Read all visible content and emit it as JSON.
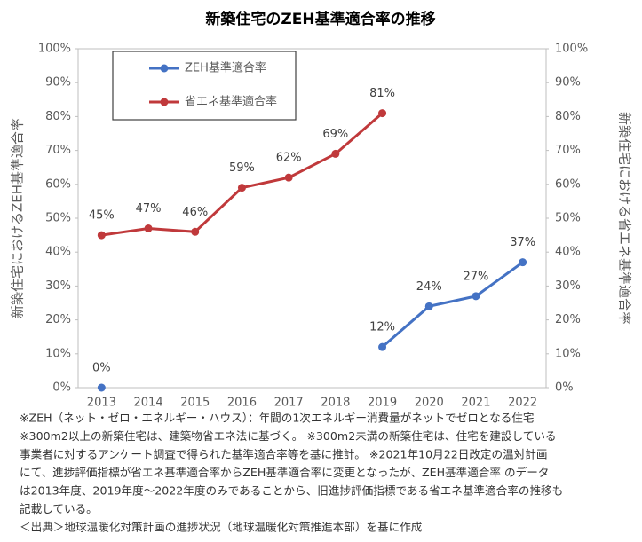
{
  "chart_data": {
    "type": "line",
    "title": "新築住宅のZEH基準適合率の推移",
    "y_label": "新築住宅におけるZEH基準適合率",
    "y2_label": "新築住宅における省エネ基準適合率",
    "categories": [
      "2013",
      "2014",
      "2015",
      "2016",
      "2017",
      "2018",
      "2019",
      "2020",
      "2021",
      "2022"
    ],
    "series": [
      {
        "name": "ZEH基準適合率",
        "color": "#4472c4",
        "axis": "y",
        "values": [
          0,
          null,
          null,
          null,
          null,
          null,
          12,
          24,
          27,
          37
        ],
        "value_labels": [
          "0%",
          null,
          null,
          null,
          null,
          null,
          "12%",
          "24%",
          "27%",
          "37%"
        ]
      },
      {
        "name": "省エネ基準適合率",
        "color": "#c0393b",
        "axis": "y2",
        "values": [
          45,
          47,
          46,
          59,
          62,
          69,
          81,
          null,
          null,
          null
        ],
        "value_labels": [
          "45%",
          "47%",
          "46%",
          "59%",
          "62%",
          "69%",
          "81%",
          null,
          null,
          null
        ]
      }
    ],
    "ylim": [
      0,
      100
    ],
    "yticks": [
      {
        "value": 0,
        "label": "0%"
      },
      {
        "value": 10,
        "label": "10%"
      },
      {
        "value": 20,
        "label": "20%"
      },
      {
        "value": 30,
        "label": "30%"
      },
      {
        "value": 40,
        "label": "40%"
      },
      {
        "value": 50,
        "label": "50%"
      },
      {
        "value": 60,
        "label": "60%"
      },
      {
        "value": 70,
        "label": "70%"
      },
      {
        "value": 80,
        "label": "80%"
      },
      {
        "value": 90,
        "label": "90%"
      },
      {
        "value": 100,
        "label": "100%"
      }
    ],
    "y2lim": [
      0,
      100
    ],
    "y2ticks": [
      {
        "value": 0,
        "label": "0%"
      },
      {
        "value": 10,
        "label": "10%"
      },
      {
        "value": 20,
        "label": "20%"
      },
      {
        "value": 30,
        "label": "30%"
      },
      {
        "value": 40,
        "label": "40%"
      },
      {
        "value": 50,
        "label": "50%"
      },
      {
        "value": 60,
        "label": "60%"
      },
      {
        "value": 70,
        "label": "70%"
      },
      {
        "value": 80,
        "label": "80%"
      },
      {
        "value": 90,
        "label": "90%"
      },
      {
        "value": 100,
        "label": "100%"
      }
    ],
    "grid": false,
    "legend": "top-left",
    "notes": [
      "※ZEH（ネット・ゼロ・エネルギー・ハウス）：年間の1次エネルギー消費量がネットでゼロとなる住宅",
      "※300m2以上の新築住宅は、建築物省エネ法に基づく。 ※300m2未満の新築住宅は、住宅を建設している",
      "事業者に対するアンケート調査で得られた基準適合率等を基に推計。 ※2021年10月22日改定の温対計画",
      "にて、進捗評価指標が省エネ基準適合率からZEH基準適合率に変更となったが、ZEH基準適合率 のデータ",
      "は2013年度、2019年度～2022年度のみであることから、旧進捗評価指標である省エネ基準適合率の推移も",
      "記載している。",
      "＜出典＞地球温暖化対策計画の進捗状況（地球温暖化対策推進本部）を基に作成"
    ]
  }
}
